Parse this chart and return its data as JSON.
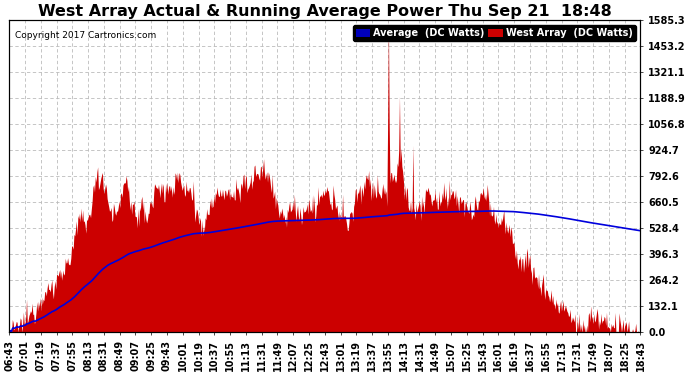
{
  "title": "West Array Actual & Running Average Power Thu Sep 21  18:48",
  "copyright": "Copyright 2017 Cartronics.com",
  "ylabel_right_values": [
    0.0,
    132.1,
    264.2,
    396.3,
    528.4,
    660.5,
    792.6,
    924.7,
    1056.8,
    1188.9,
    1321.1,
    1453.2,
    1585.3
  ],
  "ymax": 1585.3,
  "ymin": 0.0,
  "legend_average_label": "Average  (DC Watts)",
  "legend_west_label": "West Array  (DC Watts)",
  "legend_average_bg": "#0000bb",
  "legend_west_bg": "#cc0000",
  "background_color": "#ffffff",
  "fill_color": "#cc0000",
  "line_color": "#0000dd",
  "grid_color": "#bbbbbb",
  "title_fontsize": 11.5,
  "tick_fontsize": 7,
  "x_tick_labels": [
    "06:43",
    "07:01",
    "07:19",
    "07:37",
    "07:55",
    "08:13",
    "08:31",
    "08:49",
    "09:07",
    "09:25",
    "09:43",
    "10:01",
    "10:19",
    "10:37",
    "10:55",
    "11:13",
    "11:31",
    "11:49",
    "12:07",
    "12:25",
    "12:43",
    "13:01",
    "13:19",
    "13:37",
    "13:55",
    "14:13",
    "14:31",
    "14:49",
    "15:07",
    "15:25",
    "15:43",
    "16:01",
    "16:19",
    "16:37",
    "16:55",
    "17:13",
    "17:31",
    "17:49",
    "18:07",
    "18:25",
    "18:43"
  ]
}
